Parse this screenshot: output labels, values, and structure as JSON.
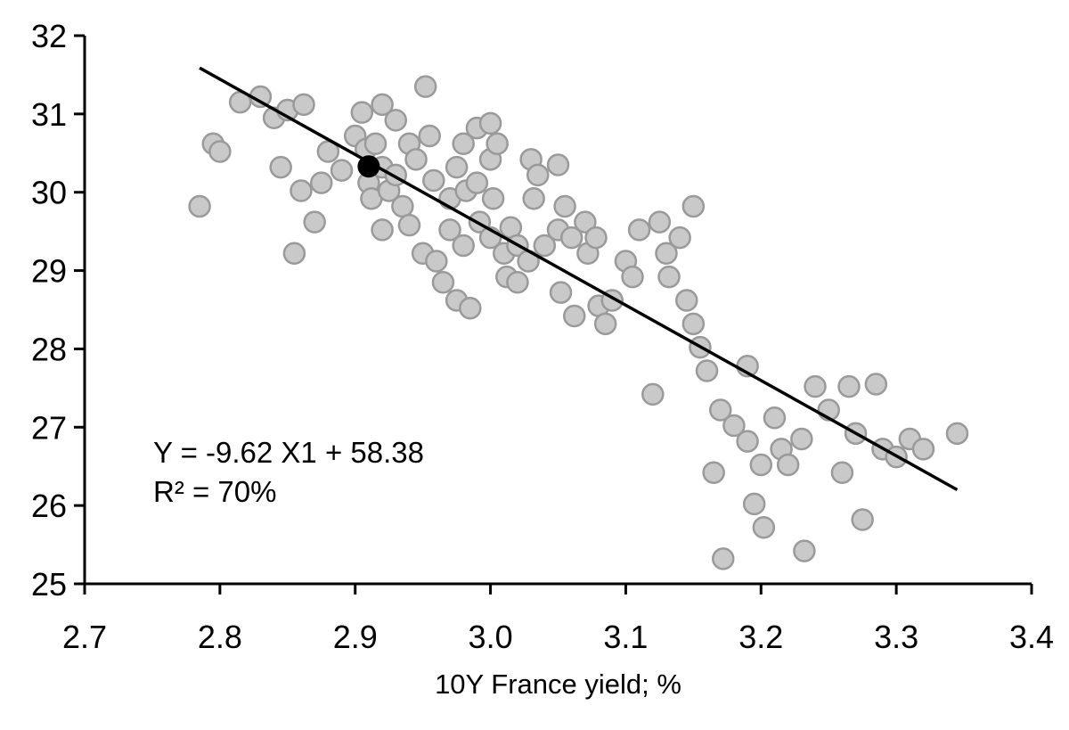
{
  "chart_data": {
    "type": "scatter",
    "title": "",
    "xlabel": "10Y France yield; %",
    "ylabel": "",
    "xlim": [
      2.7,
      3.4
    ],
    "ylim": [
      25,
      32
    ],
    "x_ticks": [
      2.7,
      2.8,
      2.9,
      3.0,
      3.1,
      3.2,
      3.3,
      3.4
    ],
    "y_ticks": [
      25,
      26,
      27,
      28,
      29,
      30,
      31,
      32
    ],
    "grid": false,
    "legend": "none",
    "annotation": {
      "line1": "Y = -9.62 X1 + 58.38",
      "line2": "R² = 70%"
    },
    "regression": {
      "slope": -9.62,
      "intercept": 58.38,
      "x_start": 2.785,
      "x_end": 3.345
    },
    "highlight_point": {
      "x": 2.91,
      "y": 30.33
    },
    "points": [
      [
        2.785,
        29.82
      ],
      [
        2.795,
        30.62
      ],
      [
        2.8,
        30.52
      ],
      [
        2.815,
        31.15
      ],
      [
        2.83,
        31.22
      ],
      [
        2.84,
        30.95
      ],
      [
        2.845,
        30.32
      ],
      [
        2.85,
        31.05
      ],
      [
        2.855,
        29.22
      ],
      [
        2.862,
        31.12
      ],
      [
        2.86,
        30.02
      ],
      [
        2.87,
        29.62
      ],
      [
        2.875,
        30.12
      ],
      [
        2.88,
        30.52
      ],
      [
        2.89,
        30.28
      ],
      [
        2.9,
        30.72
      ],
      [
        2.905,
        31.02
      ],
      [
        2.908,
        30.55
      ],
      [
        2.91,
        30.12
      ],
      [
        2.912,
        29.92
      ],
      [
        2.915,
        30.62
      ],
      [
        2.92,
        31.12
      ],
      [
        2.92,
        30.32
      ],
      [
        2.92,
        29.52
      ],
      [
        2.925,
        30.02
      ],
      [
        2.93,
        30.92
      ],
      [
        2.93,
        30.22
      ],
      [
        2.935,
        29.82
      ],
      [
        2.94,
        30.62
      ],
      [
        2.94,
        29.58
      ],
      [
        2.945,
        30.42
      ],
      [
        2.952,
        31.35
      ],
      [
        2.95,
        29.22
      ],
      [
        2.955,
        30.72
      ],
      [
        2.958,
        30.15
      ],
      [
        2.96,
        29.12
      ],
      [
        2.965,
        28.85
      ],
      [
        2.97,
        29.92
      ],
      [
        2.97,
        29.52
      ],
      [
        2.975,
        30.32
      ],
      [
        2.975,
        28.62
      ],
      [
        2.98,
        30.62
      ],
      [
        2.982,
        30.02
      ],
      [
        2.98,
        29.32
      ],
      [
        2.985,
        28.52
      ],
      [
        2.99,
        30.82
      ],
      [
        2.99,
        30.12
      ],
      [
        2.992,
        29.62
      ],
      [
        3.0,
        30.88
      ],
      [
        3.0,
        30.42
      ],
      [
        3.002,
        29.92
      ],
      [
        3.0,
        29.42
      ],
      [
        3.005,
        30.62
      ],
      [
        3.01,
        29.22
      ],
      [
        3.012,
        28.92
      ],
      [
        3.015,
        29.55
      ],
      [
        3.02,
        29.32
      ],
      [
        3.02,
        28.85
      ],
      [
        3.028,
        29.12
      ],
      [
        3.03,
        30.42
      ],
      [
        3.032,
        29.92
      ],
      [
        3.035,
        30.22
      ],
      [
        3.04,
        29.32
      ],
      [
        3.05,
        30.35
      ],
      [
        3.05,
        29.52
      ],
      [
        3.052,
        28.72
      ],
      [
        3.055,
        29.82
      ],
      [
        3.06,
        29.42
      ],
      [
        3.062,
        28.42
      ],
      [
        3.07,
        29.62
      ],
      [
        3.072,
        29.22
      ],
      [
        3.078,
        29.42
      ],
      [
        3.08,
        28.55
      ],
      [
        3.085,
        28.32
      ],
      [
        3.09,
        28.62
      ],
      [
        3.1,
        29.12
      ],
      [
        3.105,
        28.92
      ],
      [
        3.11,
        29.52
      ],
      [
        3.12,
        27.42
      ],
      [
        3.125,
        29.62
      ],
      [
        3.13,
        29.22
      ],
      [
        3.132,
        28.92
      ],
      [
        3.14,
        29.42
      ],
      [
        3.145,
        28.62
      ],
      [
        3.15,
        29.82
      ],
      [
        3.15,
        28.32
      ],
      [
        3.155,
        28.02
      ],
      [
        3.16,
        27.72
      ],
      [
        3.165,
        26.42
      ],
      [
        3.17,
        27.22
      ],
      [
        3.172,
        25.32
      ],
      [
        3.18,
        27.02
      ],
      [
        3.19,
        27.78
      ],
      [
        3.19,
        26.82
      ],
      [
        3.195,
        26.02
      ],
      [
        3.2,
        26.52
      ],
      [
        3.202,
        25.72
      ],
      [
        3.21,
        27.12
      ],
      [
        3.215,
        26.72
      ],
      [
        3.22,
        26.52
      ],
      [
        3.23,
        26.85
      ],
      [
        3.232,
        25.42
      ],
      [
        3.24,
        27.52
      ],
      [
        3.25,
        27.22
      ],
      [
        3.26,
        26.42
      ],
      [
        3.265,
        27.52
      ],
      [
        3.27,
        26.92
      ],
      [
        3.275,
        25.82
      ],
      [
        3.285,
        27.55
      ],
      [
        3.29,
        26.72
      ],
      [
        3.3,
        26.62
      ],
      [
        3.31,
        26.85
      ],
      [
        3.32,
        26.72
      ],
      [
        3.345,
        26.92
      ]
    ],
    "colors": {
      "point_fill": "#c9c9c9",
      "point_stroke": "#9a9a9a",
      "line": "#000000",
      "highlight": "#000000",
      "axis": "#000000"
    }
  }
}
